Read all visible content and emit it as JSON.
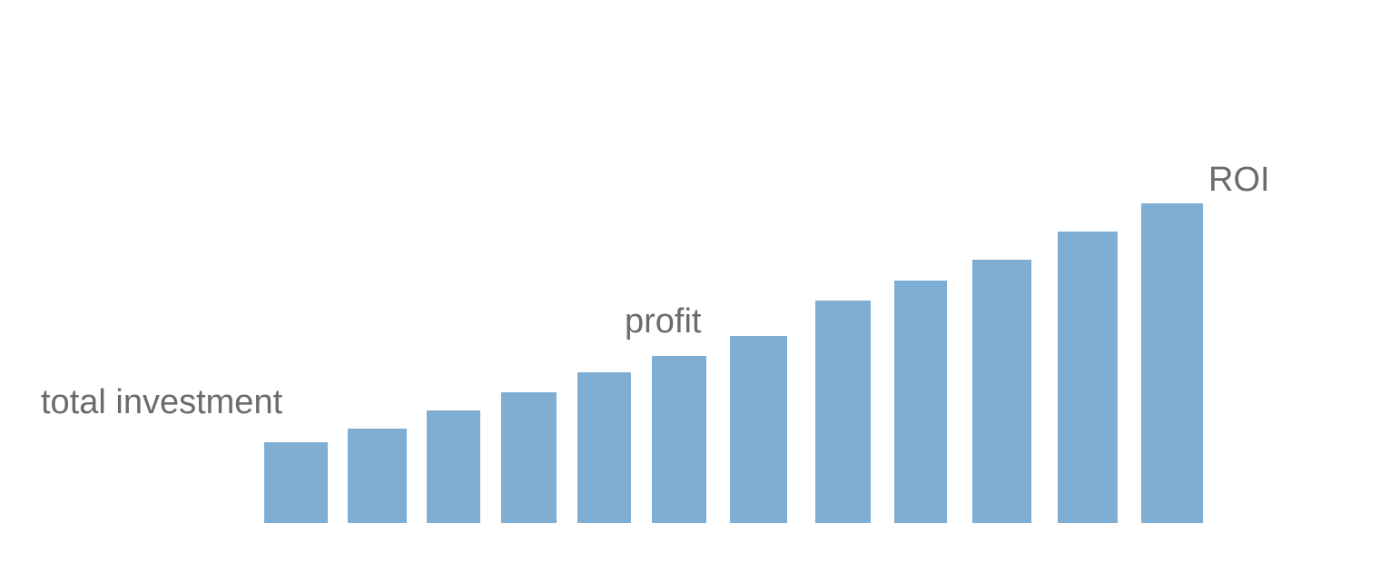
{
  "chart_data": {
    "type": "bar",
    "title": "",
    "xlabel": "",
    "ylabel": "",
    "grid": false,
    "legend": "none",
    "bar_color": "#7eaed4",
    "annotation_color": "#6b6b6b",
    "values": [
      89,
      104,
      124,
      144,
      166,
      184,
      206,
      245,
      267,
      290,
      321,
      352
    ],
    "ylim": [
      0,
      360
    ],
    "annotations": [
      {
        "text": "total investment",
        "bar_index": 0
      },
      {
        "text": "profit",
        "bar_index": 5
      },
      {
        "text": "ROI",
        "bar_index": 11
      }
    ]
  }
}
